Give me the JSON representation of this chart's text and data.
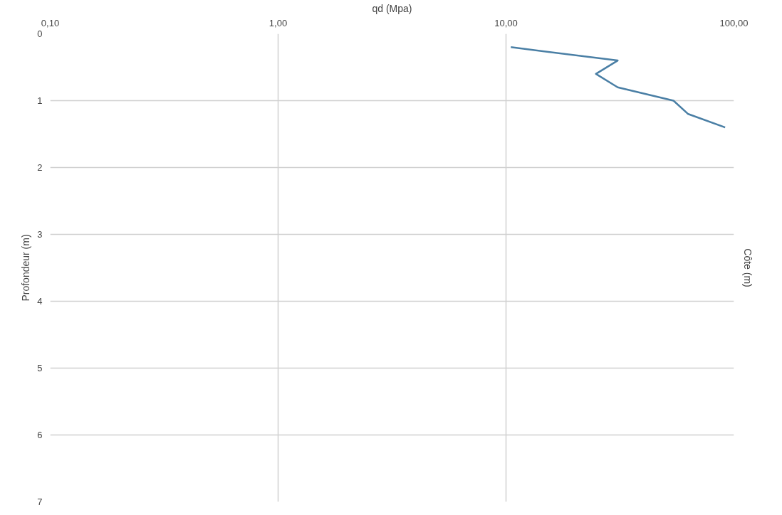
{
  "chart_data": {
    "type": "line",
    "xlabel": "qd (Mpa)",
    "ylabel": "Profondeur (m)",
    "y2label": "Côte (m)",
    "log": "x",
    "xlim": [
      0.1,
      100
    ],
    "xticks": [
      {
        "value": 0.1,
        "label": "0,10"
      },
      {
        "value": 1,
        "label": "1,00"
      },
      {
        "value": 10,
        "label": "10,00"
      },
      {
        "value": 100,
        "label": "100,00"
      }
    ],
    "ylim": [
      7,
      0
    ],
    "yticks": [
      0,
      1,
      2,
      3,
      4,
      5,
      6,
      7
    ],
    "grid": true,
    "marker": "none",
    "line_style": "solid",
    "series": [
      {
        "color": "#4a7fa5",
        "x": [
          10.5,
          30.9,
          24.8,
          30.9,
          54.3,
          63,
          91.5
        ],
        "values": [
          0.2,
          0.4,
          0.6,
          0.8,
          1.0,
          1.2,
          1.4
        ]
      }
    ]
  }
}
